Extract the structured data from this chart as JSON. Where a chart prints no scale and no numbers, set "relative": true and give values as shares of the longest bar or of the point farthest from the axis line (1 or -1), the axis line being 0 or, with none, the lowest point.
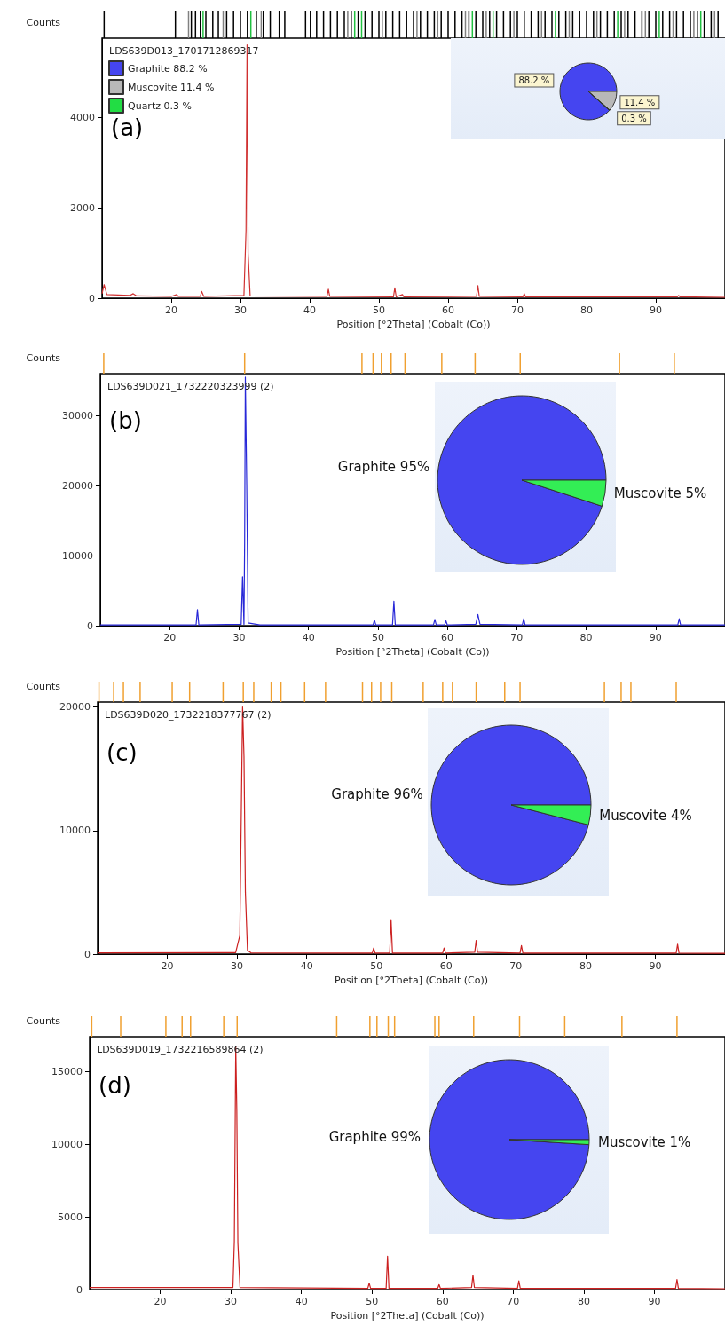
{
  "chart_data": [
    {
      "type": "line",
      "title": "LDS639D013_1701712869317",
      "xlabel": "Position [°2Theta] (Cobalt (Co))",
      "ylabel": "Counts",
      "annotations": [
        "(a)"
      ],
      "xlim": [
        10,
        100
      ],
      "xticks": [
        20,
        30,
        40,
        50,
        60,
        70,
        80,
        90
      ],
      "ylim": [
        0,
        5750
      ],
      "yticks": [
        0,
        2000,
        4000
      ],
      "series": [
        {
          "color": "#d03030",
          "x": [
            10,
            10.3,
            10.7,
            14,
            14.5,
            15,
            20,
            20.8,
            21,
            24.2,
            24.4,
            24.7,
            30.5,
            30.8,
            30.95,
            31.1,
            31.4,
            42.5,
            42.7,
            42.9,
            52.1,
            52.3,
            52.5,
            53.4,
            53.6,
            64.1,
            64.3,
            64.5,
            70.8,
            71,
            71.2,
            93.1,
            93.3,
            93.5,
            100
          ],
          "values": [
            100,
            300,
            80,
            60,
            100,
            50,
            40,
            80,
            40,
            40,
            150,
            40,
            60,
            1500,
            5600,
            1000,
            50,
            40,
            200,
            40,
            30,
            230,
            30,
            80,
            30,
            40,
            280,
            40,
            30,
            100,
            30,
            30,
            60,
            30,
            20
          ]
        }
      ]
    },
    {
      "type": "bar",
      "relative": true,
      "xlim": [
        10,
        100
      ],
      "series": [
        {
          "color": "#000000",
          "x": [
            10.3,
            20.6,
            22.9,
            23.5,
            24.2,
            25,
            26,
            26.8,
            28,
            29,
            30,
            31,
            32.3,
            33.3,
            34.3,
            35.6,
            36.4,
            39.4,
            40.1,
            41,
            42,
            43,
            44,
            45,
            46,
            47,
            48,
            49,
            50,
            51,
            52,
            53,
            54,
            55,
            56,
            57,
            58,
            59,
            60,
            61,
            62,
            63,
            64,
            65,
            66,
            67,
            68,
            69,
            70,
            71,
            72,
            73,
            74,
            75,
            76,
            77,
            78,
            79,
            80,
            81,
            82,
            83,
            84,
            85,
            86,
            87,
            88,
            89,
            90,
            91,
            92,
            93,
            94,
            95,
            96,
            97,
            98,
            99
          ],
          "values": [
            1,
            1,
            1,
            1,
            1,
            1,
            1,
            1,
            1,
            1,
            1,
            1,
            1,
            1,
            1,
            1,
            1,
            1,
            1,
            1,
            1,
            1,
            1,
            1,
            1,
            1,
            1,
            1,
            1,
            1,
            1,
            1,
            1,
            1,
            1,
            1,
            1,
            1,
            1,
            1,
            1,
            1,
            1,
            1,
            1,
            1,
            1,
            1,
            1,
            1,
            1,
            1,
            1,
            1,
            1,
            1,
            1,
            1,
            1,
            1,
            1,
            1,
            1,
            1,
            1,
            1,
            1,
            1,
            1,
            1,
            1,
            1,
            1,
            1,
            1,
            1,
            1,
            1
          ]
        },
        {
          "color": "#808080",
          "x": [
            22.5,
            27.5,
            33,
            45.5,
            50.5,
            55.5,
            58.5,
            62.5,
            65.5,
            69.5,
            73.5,
            77.5,
            81.5,
            85.5,
            88.5,
            92.5,
            95.5,
            98.5
          ],
          "values": [
            1,
            1,
            1,
            1,
            1,
            1,
            1,
            1,
            1,
            1,
            1,
            1,
            1,
            1,
            1,
            1,
            1,
            1
          ]
        },
        {
          "color": "#20c040",
          "x": [
            24.6,
            31.5,
            46.5,
            47.5,
            63.5,
            66.5,
            75.5,
            84.5,
            90.5,
            96.5
          ],
          "values": [
            1,
            1,
            1,
            1,
            1,
            1,
            1,
            1,
            1,
            1
          ]
        }
      ]
    },
    {
      "type": "pie",
      "legend": "top left",
      "categories": [
        "Graphite 88.2 %",
        "Muscovite 11.4 %",
        "Quartz 0.3 %"
      ],
      "values": [
        88.2,
        11.4,
        0.3
      ],
      "value_labels": [
        "88.2 %",
        "11.4 %",
        "0.3 %"
      ],
      "colors": [
        "#4545f0",
        "#b8b8b8",
        "#22dd44"
      ]
    },
    {
      "type": "line",
      "title": "LDS639D021_1732220323999 (2)",
      "xlabel": "Position [°2Theta] (Cobalt (Co))",
      "ylabel": "Counts",
      "annotations": [
        "(b)"
      ],
      "xlim": [
        10,
        100
      ],
      "xticks": [
        20,
        30,
        40,
        50,
        60,
        70,
        80,
        90
      ],
      "ylim": [
        0,
        36000
      ],
      "yticks": [
        0,
        10000,
        20000,
        30000
      ],
      "series": [
        {
          "color": "#2828d8",
          "x": [
            10,
            20,
            23.8,
            24,
            24.2,
            30.3,
            30.5,
            30.7,
            30.8,
            30.9,
            31.1,
            31.3,
            33,
            49.3,
            49.5,
            49.7,
            52.1,
            52.3,
            52.5,
            58,
            58.2,
            58.4,
            59.6,
            59.8,
            60,
            64.1,
            64.4,
            64.7,
            70.8,
            71,
            71.2,
            93.2,
            93.4,
            93.6,
            100
          ],
          "values": [
            100,
            100,
            100,
            2300,
            100,
            200,
            7000,
            200,
            12000,
            35500,
            20000,
            400,
            100,
            100,
            800,
            100,
            100,
            3500,
            100,
            100,
            900,
            100,
            100,
            700,
            100,
            200,
            1600,
            200,
            100,
            1000,
            100,
            100,
            1000,
            100,
            100
          ]
        }
      ]
    },
    {
      "type": "bar",
      "relative": true,
      "xlim": [
        10,
        100
      ],
      "series": [
        {
          "color": "#f0a030",
          "x": [
            10.5,
            30.8,
            47.7,
            49.3,
            50.5,
            51.9,
            53.9,
            59.2,
            64.0,
            70.5,
            84.8,
            92.7
          ],
          "values": [
            1,
            1,
            1,
            1,
            1,
            1,
            1,
            1,
            1,
            1,
            1,
            1
          ]
        }
      ]
    },
    {
      "type": "pie",
      "categories": [
        "Graphite 95%",
        "Muscovite 5%"
      ],
      "values": [
        95,
        5
      ],
      "colors": [
        "#4545f0",
        "#33ee55"
      ]
    },
    {
      "type": "line",
      "title": "LDS639D020_1732218377767 (2)",
      "xlabel": "Position [°2Theta] (Cobalt (Co))",
      "ylabel": "Counts",
      "annotations": [
        "(c)"
      ],
      "xlim": [
        10,
        100
      ],
      "xticks": [
        20,
        30,
        40,
        50,
        60,
        70,
        80,
        90
      ],
      "ylim": [
        0,
        20400
      ],
      "yticks": [
        0,
        10000,
        20000
      ],
      "series": [
        {
          "color": "#cc2020",
          "x": [
            10,
            29.8,
            30.4,
            30.8,
            31.0,
            31.2,
            31.5,
            32,
            49.4,
            49.6,
            49.8,
            51.9,
            52.1,
            52.3,
            59.5,
            59.7,
            59.9,
            64.1,
            64.3,
            64.5,
            70.6,
            70.8,
            71,
            93,
            93.2,
            93.4,
            100
          ],
          "values": [
            100,
            120,
            1500,
            20000,
            16000,
            5000,
            300,
            100,
            80,
            500,
            80,
            80,
            2800,
            80,
            80,
            500,
            80,
            150,
            1100,
            150,
            80,
            700,
            80,
            80,
            800,
            80,
            60
          ]
        }
      ]
    },
    {
      "type": "bar",
      "relative": true,
      "xlim": [
        10,
        100
      ],
      "series": [
        {
          "color": "#f0a030",
          "x": [
            10.2,
            12.3,
            13.7,
            16.1,
            20.7,
            23.2,
            28.0,
            30.9,
            32.4,
            34.9,
            36.3,
            39.7,
            42.7,
            48.0,
            49.3,
            50.6,
            52.2,
            56.7,
            59.5,
            60.9,
            64.3,
            68.4,
            70.6,
            82.7,
            85.1,
            86.5,
            93.0
          ],
          "values": [
            1,
            1,
            1,
            1,
            1,
            1,
            1,
            1,
            1,
            1,
            1,
            1,
            1,
            1,
            1,
            1,
            1,
            1,
            1,
            1,
            1,
            1,
            1,
            1,
            1,
            1,
            1
          ]
        }
      ]
    },
    {
      "type": "pie",
      "categories": [
        "Graphite 96%",
        "Muscovite 4%"
      ],
      "values": [
        96,
        4
      ],
      "colors": [
        "#4545f0",
        "#33ee55"
      ]
    },
    {
      "type": "line",
      "title": "LDS639D019_1732216589864 (2)",
      "xlabel": "Position [°2Theta] (Cobalt (Co))",
      "ylabel": "Counts",
      "annotations": [
        "(d)"
      ],
      "xlim": [
        10,
        100
      ],
      "xticks": [
        20,
        30,
        40,
        50,
        60,
        70,
        80,
        90
      ],
      "ylim": [
        0,
        17400
      ],
      "yticks": [
        0,
        5000,
        10000,
        15000
      ],
      "series": [
        {
          "color": "#cc2020",
          "x": [
            10,
            30.3,
            30.5,
            30.7,
            30.85,
            31,
            31.3,
            49.4,
            49.6,
            49.8,
            52,
            52.2,
            52.4,
            59.3,
            59.5,
            59.7,
            64.1,
            64.3,
            64.5,
            70.6,
            70.8,
            71,
            93,
            93.2,
            93.4,
            100
          ],
          "values": [
            150,
            150,
            3300,
            16700,
            12300,
            3200,
            150,
            80,
            450,
            80,
            80,
            2300,
            80,
            80,
            350,
            80,
            150,
            1000,
            150,
            80,
            600,
            80,
            80,
            700,
            80,
            60
          ]
        }
      ]
    },
    {
      "type": "bar",
      "relative": true,
      "xlim": [
        10,
        100
      ],
      "series": [
        {
          "color": "#f0a030",
          "x": [
            10.3,
            14.4,
            20.8,
            23.1,
            24.3,
            29.0,
            30.9,
            45.0,
            49.7,
            50.7,
            52.3,
            53.2,
            58.9,
            59.5,
            64.4,
            70.9,
            77.3,
            85.4,
            93.2
          ],
          "values": [
            1,
            1,
            1,
            1,
            1,
            1,
            1,
            1,
            1,
            1,
            1,
            1,
            1,
            1,
            1,
            1,
            1,
            1,
            1
          ]
        }
      ]
    },
    {
      "type": "pie",
      "categories": [
        "Graphite 99%",
        "Muscovite 1%"
      ],
      "values": [
        99,
        1
      ],
      "colors": [
        "#4545f0",
        "#33ee55"
      ]
    }
  ]
}
